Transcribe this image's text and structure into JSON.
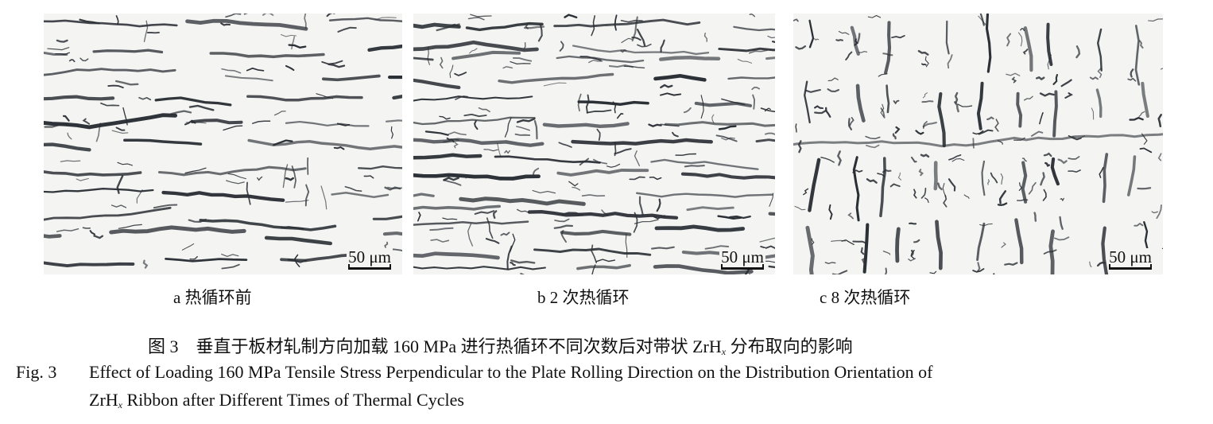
{
  "panels": [
    {
      "label": "a 热循环前",
      "scale": "50 μm",
      "orientation": "horizontal"
    },
    {
      "label": "b 2 次热循环",
      "scale": "50 μm",
      "orientation": "horizontal-dense"
    },
    {
      "label": "c 8 次热循环",
      "scale": "50 μm",
      "orientation": "vertical"
    }
  ],
  "caption": {
    "cn_prefix": "图 3",
    "cn_text_a": "垂直于板材轧制方向加载 160 MPa 进行热循环不同次数后对带状 ZrH",
    "cn_sub": "x",
    "cn_text_b": " 分布取向的影响",
    "en_prefix": "Fig. 3",
    "en_line1": "Effect of Loading 160 MPa Tensile Stress Perpendicular to the Plate Rolling Direction on the Distribution Orientation of",
    "en_line2_a": "ZrH",
    "en_sub": "x",
    "en_line2_b": " Ribbon after Different Times of Thermal Cycles"
  },
  "colors": {
    "hydride": "#2a2f35",
    "background": "#f4f4f2"
  }
}
